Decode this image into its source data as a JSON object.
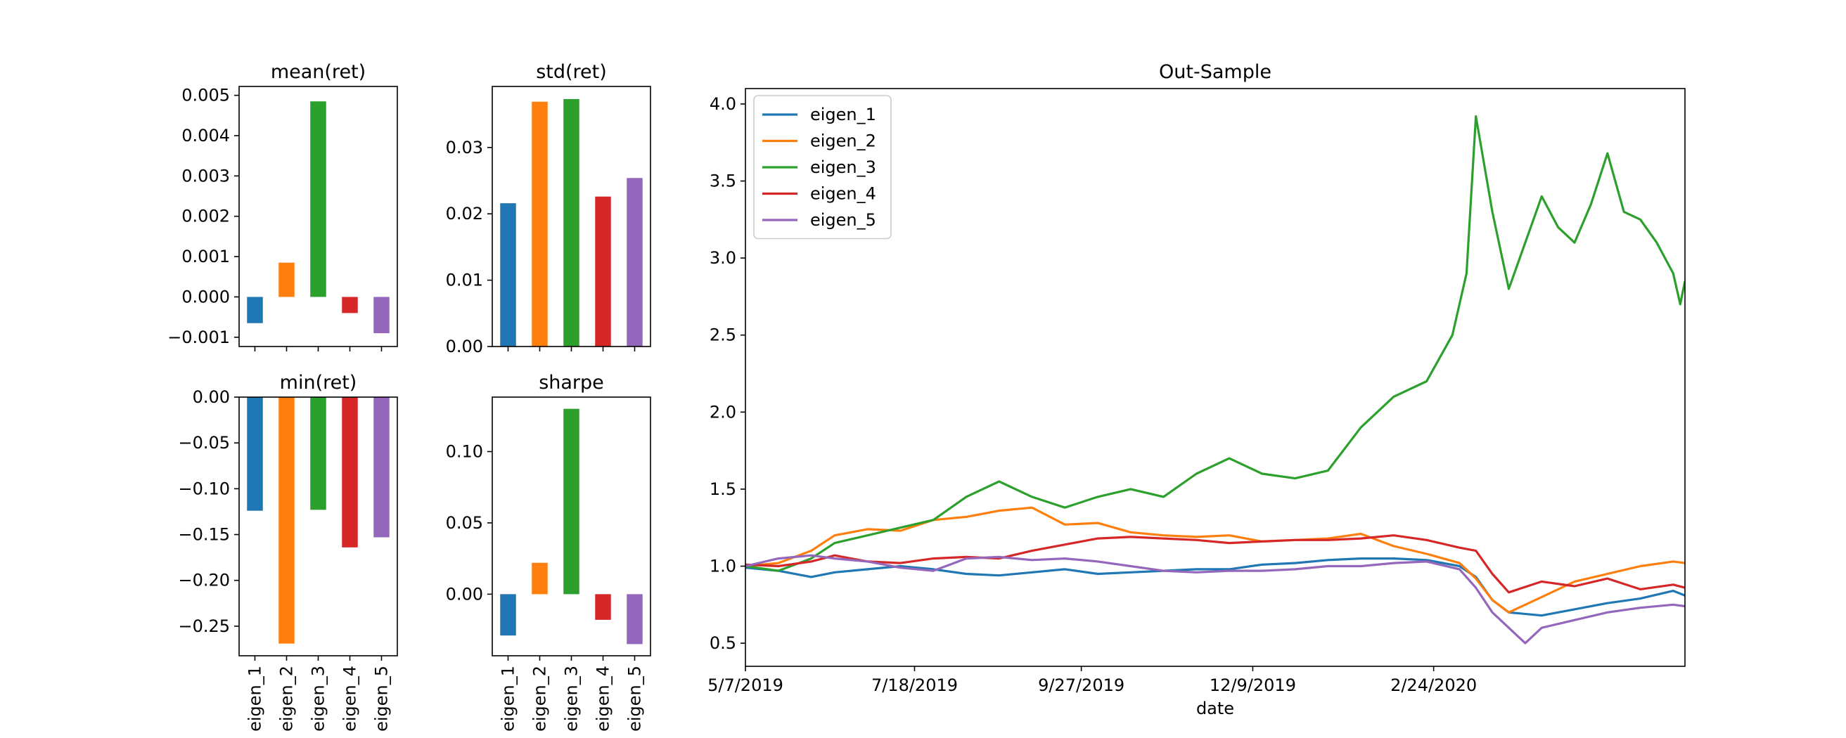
{
  "colors": {
    "eigen_1": "#1f77b4",
    "eigen_2": "#ff7f0e",
    "eigen_3": "#2ca02c",
    "eigen_4": "#d62728",
    "eigen_5": "#9467bd"
  },
  "chart_data": [
    {
      "type": "bar",
      "title": "mean(ret)",
      "categories": [
        "eigen_1",
        "eigen_2",
        "eigen_3",
        "eigen_4",
        "eigen_5"
      ],
      "values": [
        -0.00065,
        0.00085,
        0.00485,
        -0.0004,
        -0.0009
      ],
      "ylim": [
        -0.00123,
        0.00522
      ],
      "yticks": [
        -0.001,
        0.0,
        0.001,
        0.002,
        0.003,
        0.004,
        0.005
      ],
      "ytick_labels": [
        "−0.001",
        "0.000",
        "0.001",
        "0.002",
        "0.003",
        "0.004",
        "0.005"
      ],
      "show_xlabels": false
    },
    {
      "type": "bar",
      "title": "std(ret)",
      "categories": [
        "eigen_1",
        "eigen_2",
        "eigen_3",
        "eigen_4",
        "eigen_5"
      ],
      "values": [
        0.0216,
        0.0369,
        0.0373,
        0.0226,
        0.0254
      ],
      "ylim": [
        0.0,
        0.0392
      ],
      "yticks": [
        0.0,
        0.01,
        0.02,
        0.03
      ],
      "ytick_labels": [
        "0.00",
        "0.01",
        "0.02",
        "0.03"
      ],
      "show_xlabels": false
    },
    {
      "type": "bar",
      "title": "min(ret)",
      "categories": [
        "eigen_1",
        "eigen_2",
        "eigen_3",
        "eigen_4",
        "eigen_5"
      ],
      "values": [
        -0.124,
        -0.269,
        -0.123,
        -0.164,
        -0.153
      ],
      "ylim": [
        -0.2823,
        0.0
      ],
      "yticks": [
        -0.25,
        -0.2,
        -0.15,
        -0.1,
        -0.05,
        0.0
      ],
      "ytick_labels": [
        "−0.25",
        "−0.20",
        "−0.15",
        "−0.10",
        "−0.05",
        "0.00"
      ],
      "show_xlabels": true
    },
    {
      "type": "bar",
      "title": "sharpe",
      "categories": [
        "eigen_1",
        "eigen_2",
        "eigen_3",
        "eigen_4",
        "eigen_5"
      ],
      "values": [
        -0.029,
        0.022,
        0.13,
        -0.018,
        -0.035
      ],
      "ylim": [
        -0.0432,
        0.1382
      ],
      "yticks": [
        0.0,
        0.05,
        0.1
      ],
      "ytick_labels": [
        "0.00",
        "0.05",
        "0.10"
      ],
      "show_xlabels": true
    },
    {
      "type": "line",
      "title": "Out-Sample",
      "xlabel": "date",
      "ylabel": "",
      "x_range": [
        "2019-05-07",
        "2020-06-10"
      ],
      "xticks": [
        "2019-05-07",
        "2019-07-18",
        "2019-09-27",
        "2019-12-09",
        "2020-02-24"
      ],
      "xtick_labels": [
        "5/7/2019",
        "7/18/2019",
        "9/27/2019",
        "12/9/2019",
        "2/24/2020"
      ],
      "ylim": [
        0.35,
        4.1
      ],
      "yticks": [
        0.5,
        1.0,
        1.5,
        2.0,
        2.5,
        3.0,
        3.5,
        4.0
      ],
      "ytick_labels": [
        "0.5",
        "1.0",
        "1.5",
        "2.0",
        "2.5",
        "3.0",
        "3.5",
        "4.0"
      ],
      "grid": false,
      "legend_position": "top-left",
      "series": [
        {
          "name": "eigen_1",
          "x": [
            "2019-05-07",
            "2019-05-21",
            "2019-06-04",
            "2019-06-14",
            "2019-06-28",
            "2019-07-12",
            "2019-07-26",
            "2019-08-09",
            "2019-08-23",
            "2019-09-06",
            "2019-09-20",
            "2019-10-04",
            "2019-10-18",
            "2019-11-01",
            "2019-11-15",
            "2019-11-29",
            "2019-12-13",
            "2019-12-27",
            "2020-01-10",
            "2020-01-24",
            "2020-02-07",
            "2020-02-21",
            "2020-03-06",
            "2020-03-13",
            "2020-03-20",
            "2020-03-27",
            "2020-04-10",
            "2020-04-24",
            "2020-05-08",
            "2020-05-22",
            "2020-06-05",
            "2020-06-10"
          ],
          "y": [
            0.99,
            0.97,
            0.93,
            0.96,
            0.98,
            1.0,
            0.98,
            0.95,
            0.94,
            0.96,
            0.98,
            0.95,
            0.96,
            0.97,
            0.98,
            0.98,
            1.01,
            1.02,
            1.04,
            1.05,
            1.05,
            1.04,
            1.0,
            0.93,
            0.78,
            0.7,
            0.68,
            0.72,
            0.76,
            0.79,
            0.84,
            0.81
          ]
        },
        {
          "name": "eigen_2",
          "x": [
            "2019-05-07",
            "2019-05-21",
            "2019-06-04",
            "2019-06-14",
            "2019-06-28",
            "2019-07-12",
            "2019-07-26",
            "2019-08-09",
            "2019-08-23",
            "2019-09-06",
            "2019-09-20",
            "2019-10-04",
            "2019-10-18",
            "2019-11-01",
            "2019-11-15",
            "2019-11-29",
            "2019-12-13",
            "2019-12-27",
            "2020-01-10",
            "2020-01-24",
            "2020-02-07",
            "2020-02-21",
            "2020-03-06",
            "2020-03-13",
            "2020-03-20",
            "2020-03-27",
            "2020-04-10",
            "2020-04-24",
            "2020-05-08",
            "2020-05-22",
            "2020-06-05",
            "2020-06-10"
          ],
          "y": [
            1.0,
            1.02,
            1.1,
            1.2,
            1.24,
            1.23,
            1.3,
            1.32,
            1.36,
            1.38,
            1.27,
            1.28,
            1.22,
            1.2,
            1.19,
            1.2,
            1.16,
            1.17,
            1.18,
            1.21,
            1.13,
            1.08,
            1.02,
            0.92,
            0.78,
            0.7,
            0.8,
            0.9,
            0.95,
            1.0,
            1.03,
            1.02
          ]
        },
        {
          "name": "eigen_3",
          "x": [
            "2019-05-07",
            "2019-05-21",
            "2019-06-04",
            "2019-06-14",
            "2019-06-28",
            "2019-07-12",
            "2019-07-26",
            "2019-08-09",
            "2019-08-23",
            "2019-09-06",
            "2019-09-20",
            "2019-10-04",
            "2019-10-18",
            "2019-11-01",
            "2019-11-15",
            "2019-11-29",
            "2019-12-13",
            "2019-12-27",
            "2020-01-10",
            "2020-01-24",
            "2020-02-07",
            "2020-02-21",
            "2020-03-03",
            "2020-03-09",
            "2020-03-13",
            "2020-03-20",
            "2020-03-27",
            "2020-04-03",
            "2020-04-10",
            "2020-04-17",
            "2020-04-24",
            "2020-05-01",
            "2020-05-08",
            "2020-05-15",
            "2020-05-22",
            "2020-05-29",
            "2020-06-05",
            "2020-06-08",
            "2020-06-10"
          ],
          "y": [
            1.0,
            0.97,
            1.05,
            1.15,
            1.2,
            1.25,
            1.3,
            1.45,
            1.55,
            1.45,
            1.38,
            1.45,
            1.5,
            1.45,
            1.6,
            1.7,
            1.6,
            1.57,
            1.62,
            1.9,
            2.1,
            2.2,
            2.5,
            2.9,
            3.92,
            3.3,
            2.8,
            3.1,
            3.4,
            3.2,
            3.1,
            3.35,
            3.68,
            3.3,
            3.25,
            3.1,
            2.9,
            2.7,
            2.85
          ]
        },
        {
          "name": "eigen_4",
          "x": [
            "2019-05-07",
            "2019-05-21",
            "2019-06-04",
            "2019-06-14",
            "2019-06-28",
            "2019-07-12",
            "2019-07-26",
            "2019-08-09",
            "2019-08-23",
            "2019-09-06",
            "2019-09-20",
            "2019-10-04",
            "2019-10-18",
            "2019-11-01",
            "2019-11-15",
            "2019-11-29",
            "2019-12-13",
            "2019-12-27",
            "2020-01-10",
            "2020-01-24",
            "2020-02-07",
            "2020-02-21",
            "2020-03-06",
            "2020-03-13",
            "2020-03-20",
            "2020-03-27",
            "2020-04-10",
            "2020-04-24",
            "2020-05-08",
            "2020-05-22",
            "2020-06-05",
            "2020-06-10"
          ],
          "y": [
            1.01,
            1.0,
            1.03,
            1.07,
            1.03,
            1.02,
            1.05,
            1.06,
            1.05,
            1.1,
            1.14,
            1.18,
            1.19,
            1.18,
            1.17,
            1.15,
            1.16,
            1.17,
            1.17,
            1.18,
            1.2,
            1.17,
            1.12,
            1.1,
            0.95,
            0.83,
            0.9,
            0.87,
            0.92,
            0.85,
            0.88,
            0.86
          ]
        },
        {
          "name": "eigen_5",
          "x": [
            "2019-05-07",
            "2019-05-21",
            "2019-06-04",
            "2019-06-14",
            "2019-06-28",
            "2019-07-12",
            "2019-07-26",
            "2019-08-09",
            "2019-08-23",
            "2019-09-06",
            "2019-09-20",
            "2019-10-04",
            "2019-10-18",
            "2019-11-01",
            "2019-11-15",
            "2019-11-29",
            "2019-12-13",
            "2019-12-27",
            "2020-01-10",
            "2020-01-24",
            "2020-02-07",
            "2020-02-21",
            "2020-03-06",
            "2020-03-13",
            "2020-03-20",
            "2020-03-27",
            "2020-04-03",
            "2020-04-10",
            "2020-04-24",
            "2020-05-08",
            "2020-05-22",
            "2020-06-05",
            "2020-06-10"
          ],
          "y": [
            1.0,
            1.05,
            1.07,
            1.05,
            1.03,
            0.99,
            0.97,
            1.05,
            1.06,
            1.04,
            1.05,
            1.03,
            1.0,
            0.97,
            0.96,
            0.97,
            0.97,
            0.98,
            1.0,
            1.0,
            1.02,
            1.03,
            0.98,
            0.86,
            0.7,
            0.6,
            0.5,
            0.6,
            0.65,
            0.7,
            0.73,
            0.75,
            0.74
          ]
        }
      ]
    }
  ]
}
